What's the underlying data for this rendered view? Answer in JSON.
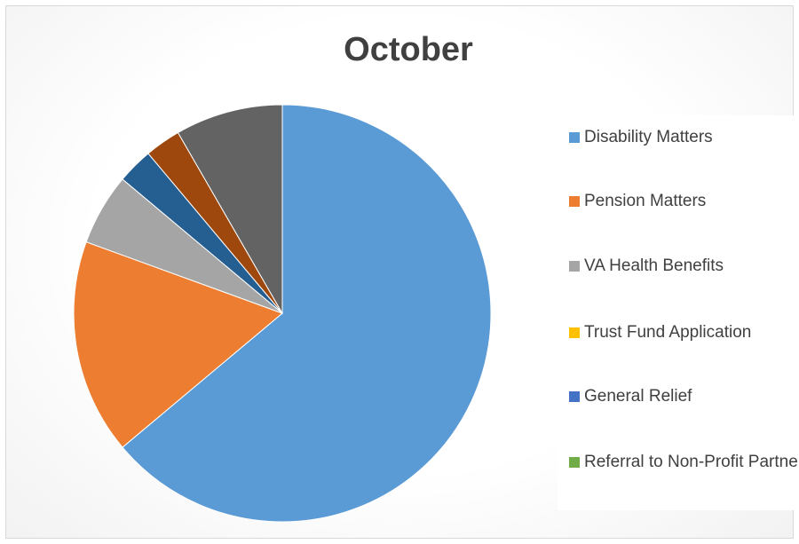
{
  "chart_data": {
    "type": "pie",
    "title": "October",
    "categories": [
      "Disability Matters",
      "Pension Matters",
      "VA Health Benefits",
      "Trust Fund Application",
      "General Relief",
      "Referral to Non-Profit Partner",
      null,
      null,
      null
    ],
    "values": [
      23,
      6,
      2,
      0,
      0,
      0,
      1,
      1,
      3
    ],
    "colors": [
      "#5b9bd5",
      "#ed7d31",
      "#a5a5a5",
      "#ffc000",
      "#4472c4",
      "#70ad47",
      "#255e91",
      "#9e480e",
      "#636363"
    ],
    "legend": "right"
  }
}
